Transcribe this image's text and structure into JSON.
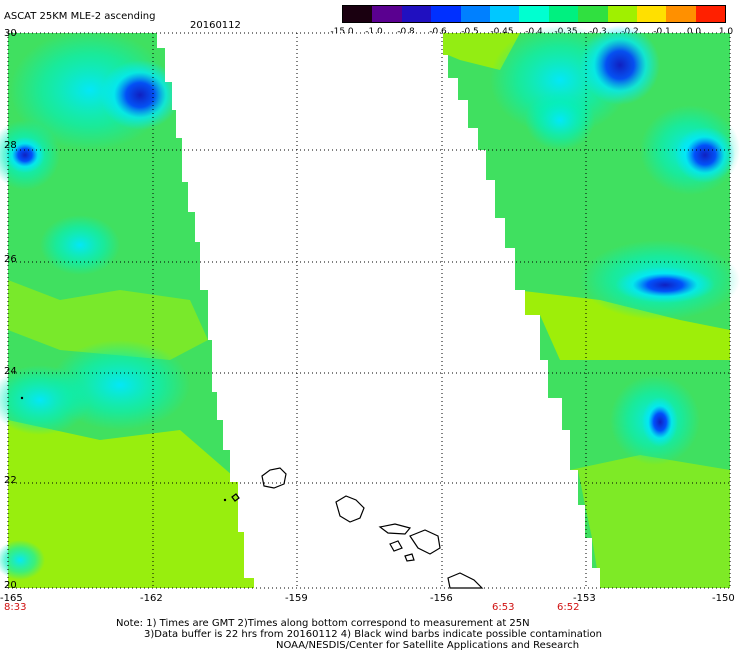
{
  "header": {
    "title": "ASCAT 25KM MLE-2 ascending",
    "date": "20160112"
  },
  "colorbar": {
    "ticks": [
      "-15.0",
      "-1.0",
      "-0.8",
      "-0.6",
      "-0.5",
      "-0.45",
      "-0.4",
      "-0.35",
      "-0.3",
      "-0.2",
      "-0.1",
      "0.0",
      "1.0"
    ],
    "colors": [
      "#1a0010",
      "#5a0090",
      "#2010c0",
      "#0030ff",
      "#0080ff",
      "#00c8ff",
      "#00ffd0",
      "#00f080",
      "#30e040",
      "#a0f000",
      "#ffe000",
      "#ff9000",
      "#ff2000"
    ]
  },
  "map": {
    "lat_labels": [
      "30",
      "28",
      "26",
      "24",
      "22",
      "20"
    ],
    "lon_labels": [
      "-165",
      "-162",
      "-159",
      "-156",
      "-153",
      "-150"
    ],
    "times": [
      {
        "label": "8:33",
        "lon": "-165"
      },
      {
        "label": "6:53",
        "lon": "-154.5"
      },
      {
        "label": "6:52",
        "lon": "-153.5"
      }
    ],
    "palette": {
      "background": "#ffffff",
      "lime": "#a8f000",
      "green": "#40e060",
      "teal": "#00f0c0",
      "cyan": "#00e8ff",
      "blue": "#0040ff",
      "deep_blue": "#1020c0",
      "coast": "#000000"
    }
  },
  "footer": {
    "line1": "Note: 1) Times are GMT 2)Times along bottom correspond to measurement at 25N",
    "line2": "3)Data buffer is 22 hrs from 20160112 4) Black wind barbs indicate possible contamination",
    "line3": "NOAA/NESDIS/Center for Satellite Applications and Research"
  }
}
